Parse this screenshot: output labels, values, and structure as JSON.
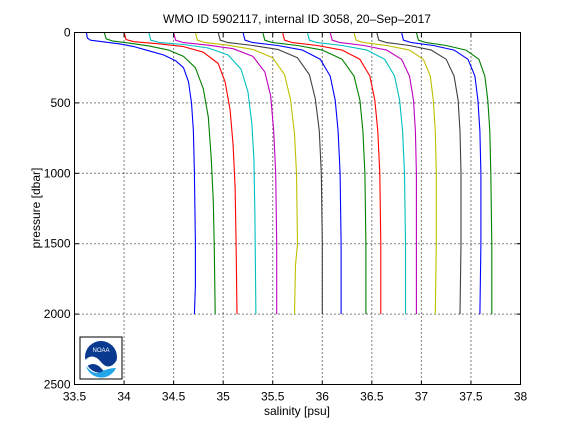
{
  "chart_data": {
    "type": "line",
    "title": "WMO ID 5902117, internal ID 3058, 20–Sep–2017",
    "xlabel": "salinity [psu]",
    "ylabel": "pressure [dbar]",
    "xlim": [
      33.5,
      38
    ],
    "ylim": [
      0,
      2500
    ],
    "y_reversed": true,
    "grid": true,
    "xticks": [
      33.5,
      34,
      34.5,
      35,
      35.5,
      36,
      36.5,
      37,
      37.5,
      38
    ],
    "xtick_labels": [
      "33.5",
      "34",
      "34.5",
      "35",
      "35.5",
      "36",
      "36.5",
      "37",
      "37.5",
      "38"
    ],
    "yticks": [
      0,
      500,
      1000,
      1500,
      2000,
      2500
    ],
    "ytick_labels": [
      "0",
      "500",
      "1000",
      "1500",
      "2000",
      "2500"
    ],
    "series": [
      {
        "color": "#0000ff",
        "points": [
          [
            33.62,
            0
          ],
          [
            33.63,
            40
          ],
          [
            33.66,
            55
          ],
          [
            33.78,
            65
          ],
          [
            33.95,
            80
          ],
          [
            34.1,
            100
          ],
          [
            34.25,
            130
          ],
          [
            34.4,
            160
          ],
          [
            34.52,
            200
          ],
          [
            34.6,
            250
          ],
          [
            34.65,
            350
          ],
          [
            34.68,
            500
          ],
          [
            34.7,
            700
          ],
          [
            34.71,
            1000
          ],
          [
            34.72,
            1500
          ],
          [
            34.72,
            1800
          ],
          [
            34.71,
            2000
          ]
        ]
      },
      {
        "color": "#008000",
        "points": [
          [
            33.8,
            0
          ],
          [
            33.82,
            45
          ],
          [
            33.88,
            60
          ],
          [
            34.05,
            75
          ],
          [
            34.25,
            95
          ],
          [
            34.45,
            125
          ],
          [
            34.6,
            170
          ],
          [
            34.72,
            250
          ],
          [
            34.8,
            400
          ],
          [
            34.85,
            600
          ],
          [
            34.88,
            900
          ],
          [
            34.9,
            1200
          ],
          [
            34.91,
            1500
          ],
          [
            34.92,
            2000
          ]
        ]
      },
      {
        "color": "#ff0000",
        "points": [
          [
            34.0,
            0
          ],
          [
            34.02,
            50
          ],
          [
            34.1,
            65
          ],
          [
            34.35,
            80
          ],
          [
            34.6,
            100
          ],
          [
            34.8,
            140
          ],
          [
            34.95,
            220
          ],
          [
            35.02,
            350
          ],
          [
            35.07,
            550
          ],
          [
            35.1,
            800
          ],
          [
            35.12,
            1100
          ],
          [
            35.13,
            1500
          ],
          [
            35.14,
            2000
          ]
        ]
      },
      {
        "color": "#00bfbf",
        "points": [
          [
            34.25,
            0
          ],
          [
            34.27,
            55
          ],
          [
            34.35,
            70
          ],
          [
            34.6,
            85
          ],
          [
            34.85,
            110
          ],
          [
            35.05,
            160
          ],
          [
            35.18,
            260
          ],
          [
            35.25,
            420
          ],
          [
            35.29,
            650
          ],
          [
            35.31,
            900
          ],
          [
            35.32,
            1300
          ],
          [
            35.33,
            2000
          ]
        ]
      },
      {
        "color": "#bf00bf",
        "points": [
          [
            34.5,
            0
          ],
          [
            34.52,
            55
          ],
          [
            34.6,
            72
          ],
          [
            34.85,
            90
          ],
          [
            35.1,
            115
          ],
          [
            35.3,
            170
          ],
          [
            35.42,
            280
          ],
          [
            35.48,
            450
          ],
          [
            35.51,
            700
          ],
          [
            35.53,
            1000
          ],
          [
            35.54,
            1500
          ],
          [
            35.54,
            2000
          ]
        ]
      },
      {
        "color": "#bfbf00",
        "points": [
          [
            34.72,
            0
          ],
          [
            34.74,
            55
          ],
          [
            34.82,
            72
          ],
          [
            35.05,
            90
          ],
          [
            35.3,
            120
          ],
          [
            35.5,
            180
          ],
          [
            35.62,
            300
          ],
          [
            35.68,
            480
          ],
          [
            35.72,
            720
          ],
          [
            35.74,
            1000
          ],
          [
            35.75,
            1500
          ],
          [
            35.73,
            1650
          ],
          [
            35.72,
            2000
          ]
        ]
      },
      {
        "color": "#404040",
        "points": [
          [
            34.95,
            0
          ],
          [
            34.97,
            55
          ],
          [
            35.05,
            72
          ],
          [
            35.3,
            92
          ],
          [
            35.55,
            120
          ],
          [
            35.75,
            180
          ],
          [
            35.87,
            300
          ],
          [
            35.93,
            470
          ],
          [
            35.97,
            700
          ],
          [
            35.99,
            1000
          ],
          [
            36.0,
            1500
          ],
          [
            36.0,
            2000
          ]
        ]
      },
      {
        "color": "#0000ff",
        "points": [
          [
            35.2,
            0
          ],
          [
            35.22,
            55
          ],
          [
            35.3,
            72
          ],
          [
            35.55,
            92
          ],
          [
            35.8,
            125
          ],
          [
            35.98,
            190
          ],
          [
            36.08,
            310
          ],
          [
            36.13,
            480
          ],
          [
            36.16,
            700
          ],
          [
            36.18,
            1000
          ],
          [
            36.19,
            1500
          ],
          [
            36.19,
            2000
          ]
        ]
      },
      {
        "color": "#008000",
        "points": [
          [
            35.4,
            0
          ],
          [
            35.42,
            55
          ],
          [
            35.5,
            72
          ],
          [
            35.75,
            92
          ],
          [
            36.0,
            125
          ],
          [
            36.2,
            190
          ],
          [
            36.32,
            310
          ],
          [
            36.38,
            480
          ],
          [
            36.41,
            700
          ],
          [
            36.43,
            1000
          ],
          [
            36.44,
            1500
          ],
          [
            36.44,
            2000
          ]
        ]
      },
      {
        "color": "#ff0000",
        "points": [
          [
            35.6,
            0
          ],
          [
            35.62,
            55
          ],
          [
            35.7,
            72
          ],
          [
            35.95,
            92
          ],
          [
            36.2,
            125
          ],
          [
            36.38,
            190
          ],
          [
            36.48,
            310
          ],
          [
            36.53,
            480
          ],
          [
            36.56,
            700
          ],
          [
            36.58,
            1000
          ],
          [
            36.59,
            1500
          ],
          [
            36.59,
            2000
          ]
        ]
      },
      {
        "color": "#00bfbf",
        "points": [
          [
            35.85,
            0
          ],
          [
            35.87,
            55
          ],
          [
            35.95,
            72
          ],
          [
            36.2,
            92
          ],
          [
            36.45,
            125
          ],
          [
            36.63,
            190
          ],
          [
            36.73,
            310
          ],
          [
            36.78,
            480
          ],
          [
            36.81,
            700
          ],
          [
            36.83,
            1000
          ],
          [
            36.84,
            1500
          ],
          [
            36.84,
            2000
          ]
        ]
      },
      {
        "color": "#bf00bf",
        "points": [
          [
            36.08,
            0
          ],
          [
            36.1,
            55
          ],
          [
            36.18,
            72
          ],
          [
            36.42,
            92
          ],
          [
            36.65,
            125
          ],
          [
            36.8,
            190
          ],
          [
            36.88,
            310
          ],
          [
            36.92,
            480
          ],
          [
            36.94,
            700
          ],
          [
            36.95,
            1000
          ],
          [
            36.95,
            1500
          ],
          [
            36.95,
            2000
          ]
        ]
      },
      {
        "color": "#bfbf00",
        "points": [
          [
            36.32,
            0
          ],
          [
            36.34,
            55
          ],
          [
            36.42,
            72
          ],
          [
            36.65,
            92
          ],
          [
            36.88,
            125
          ],
          [
            37.02,
            190
          ],
          [
            37.09,
            310
          ],
          [
            37.12,
            480
          ],
          [
            37.14,
            700
          ],
          [
            37.15,
            1000
          ],
          [
            37.15,
            1500
          ],
          [
            37.14,
            2000
          ]
        ]
      },
      {
        "color": "#404040",
        "points": [
          [
            36.55,
            0
          ],
          [
            36.57,
            55
          ],
          [
            36.65,
            72
          ],
          [
            36.88,
            92
          ],
          [
            37.1,
            125
          ],
          [
            37.25,
            190
          ],
          [
            37.33,
            310
          ],
          [
            37.37,
            480
          ],
          [
            37.39,
            700
          ],
          [
            37.4,
            1000
          ],
          [
            37.4,
            1500
          ],
          [
            37.39,
            2000
          ]
        ]
      },
      {
        "color": "#0000ff",
        "points": [
          [
            36.8,
            0
          ],
          [
            36.82,
            55
          ],
          [
            36.9,
            72
          ],
          [
            37.12,
            92
          ],
          [
            37.33,
            125
          ],
          [
            37.47,
            190
          ],
          [
            37.54,
            310
          ],
          [
            37.57,
            480
          ],
          [
            37.59,
            700
          ],
          [
            37.6,
            1000
          ],
          [
            37.6,
            1500
          ],
          [
            37.59,
            2000
          ]
        ]
      },
      {
        "color": "#008000",
        "points": [
          [
            36.95,
            0
          ],
          [
            36.97,
            55
          ],
          [
            37.05,
            72
          ],
          [
            37.25,
            92
          ],
          [
            37.45,
            125
          ],
          [
            37.58,
            190
          ],
          [
            37.64,
            310
          ],
          [
            37.67,
            480
          ],
          [
            37.69,
            700
          ],
          [
            37.7,
            1000
          ],
          [
            37.71,
            1500
          ],
          [
            37.71,
            2000
          ]
        ]
      }
    ]
  },
  "logo_text": "NOAA"
}
